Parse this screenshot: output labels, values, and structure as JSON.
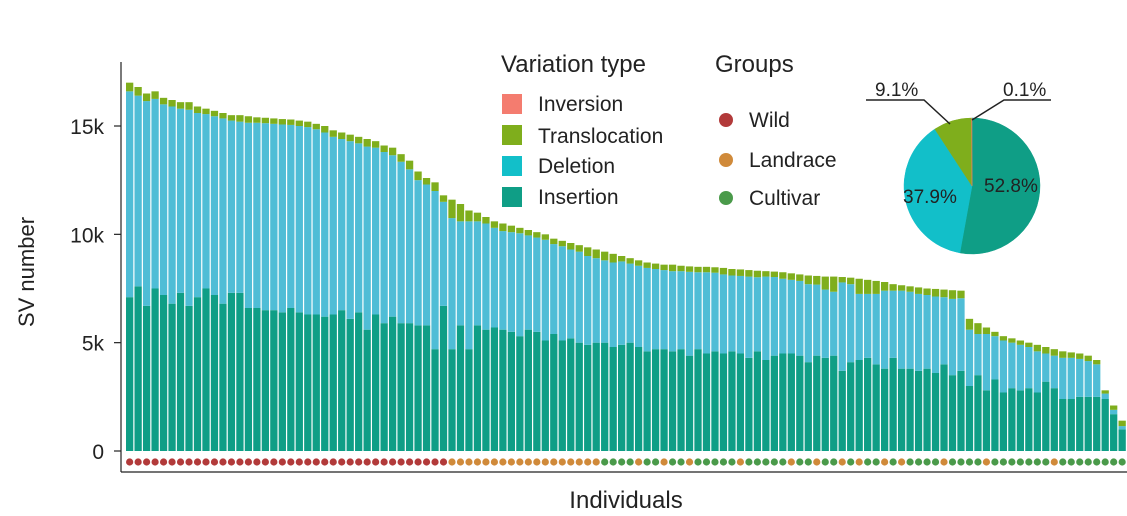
{
  "chart_data": [
    {
      "type": "bar",
      "stacked": true,
      "xlabel": "Individuals",
      "ylabel": "SV number",
      "ylim": [
        0,
        18000
      ],
      "yticks": [
        0,
        5000,
        10000,
        15000
      ],
      "yticklabels": [
        "0",
        "5k",
        "10k",
        "15k"
      ],
      "grid": false,
      "legend_variation": {
        "title": "Variation type",
        "entries": [
          "Inversion",
          "Translocation",
          "Deletion",
          "Insertion"
        ]
      },
      "legend_groups": {
        "title": "Groups",
        "entries": [
          "Wild",
          "Landrace",
          "Cultivar"
        ]
      },
      "colors": {
        "Inversion": "#f47c6f",
        "Translocation": "#7fae1c",
        "Deletion": "#4fbdd6",
        "Insertion": "#0f9e86",
        "Wild": "#b23a3a",
        "Landrace": "#d08a3a",
        "Cultivar": "#4a9a4a"
      },
      "totals": [
        17000,
        16800,
        16500,
        16600,
        16300,
        16200,
        16100,
        16100,
        15900,
        15800,
        15700,
        15600,
        15500,
        15500,
        15450,
        15400,
        15380,
        15350,
        15320,
        15300,
        15250,
        15200,
        15100,
        15000,
        14800,
        14700,
        14600,
        14500,
        14400,
        14300,
        14100,
        14000,
        13700,
        13400,
        12900,
        12600,
        12400,
        11800,
        11600,
        11400,
        11100,
        11000,
        10800,
        10600,
        10500,
        10400,
        10300,
        10200,
        10100,
        10000,
        9800,
        9700,
        9600,
        9500,
        9400,
        9300,
        9200,
        9100,
        9000,
        8900,
        8800,
        8700,
        8650,
        8600,
        8600,
        8550,
        8520,
        8500,
        8500,
        8480,
        8450,
        8400,
        8380,
        8350,
        8320,
        8300,
        8280,
        8250,
        8200,
        8150,
        8100,
        8080,
        8050,
        8050,
        8030,
        8000,
        7950,
        7900,
        7850,
        7800,
        7700,
        7650,
        7600,
        7550,
        7500,
        7480,
        7450,
        7420,
        7400,
        6100,
        5900,
        5700,
        5500,
        5300,
        5200,
        5100,
        5000,
        4900,
        4800,
        4700,
        4600,
        4550,
        4500,
        4400,
        4200,
        2800,
        2100,
        1400
      ],
      "translocation": [
        400,
        400,
        350,
        350,
        300,
        300,
        300,
        350,
        300,
        250,
        250,
        250,
        250,
        300,
        300,
        250,
        250,
        250,
        250,
        250,
        250,
        250,
        250,
        300,
        300,
        300,
        300,
        300,
        350,
        300,
        300,
        350,
        350,
        400,
        400,
        300,
        400,
        300,
        850,
        800,
        500,
        400,
        300,
        300,
        350,
        300,
        250,
        250,
        250,
        250,
        250,
        250,
        300,
        300,
        400,
        400,
        400,
        400,
        250,
        250,
        250,
        250,
        250,
        250,
        300,
        250,
        250,
        250,
        250,
        250,
        300,
        300,
        300,
        300,
        300,
        250,
        250,
        300,
        300,
        300,
        400,
        400,
        600,
        700,
        250,
        300,
        700,
        650,
        600,
        400,
        300,
        250,
        250,
        300,
        300,
        350,
        350,
        400,
        350,
        500,
        500,
        300,
        200,
        200,
        200,
        200,
        200,
        300,
        300,
        300,
        300,
        250,
        250,
        250,
        200,
        150,
        200,
        250
      ],
      "insertion": [
        7100,
        7600,
        6700,
        7500,
        7200,
        6800,
        7300,
        6700,
        7100,
        7500,
        7200,
        6800,
        7300,
        7300,
        6600,
        6600,
        6500,
        6500,
        6400,
        6600,
        6400,
        6300,
        6300,
        6200,
        6300,
        6500,
        6100,
        6400,
        5600,
        6300,
        5900,
        6200,
        5900,
        5900,
        5800,
        5800,
        4700,
        6700,
        4700,
        5800,
        4700,
        5800,
        5600,
        5700,
        5600,
        5500,
        5300,
        5600,
        5500,
        5100,
        5400,
        5100,
        5200,
        5000,
        4900,
        5000,
        5000,
        4800,
        4900,
        5000,
        4800,
        4600,
        4700,
        4700,
        4600,
        4700,
        4400,
        4700,
        4500,
        4600,
        4500,
        4600,
        4500,
        4300,
        4600,
        4200,
        4400,
        4500,
        4500,
        4400,
        4100,
        4400,
        4300,
        4400,
        3700,
        4100,
        4200,
        4300,
        4000,
        3800,
        4300,
        3800,
        3800,
        3700,
        3800,
        3600,
        4000,
        3500,
        3700,
        3000,
        3500,
        2800,
        3300,
        2700,
        2900,
        2800,
        2900,
        2700,
        3200,
        2900,
        2400,
        2400,
        2500,
        2500,
        2500,
        2400,
        1700,
        1000
      ],
      "groups_order": [
        "Wild",
        "Wild",
        "Wild",
        "Wild",
        "Wild",
        "Wild",
        "Wild",
        "Wild",
        "Wild",
        "Wild",
        "Wild",
        "Wild",
        "Wild",
        "Wild",
        "Wild",
        "Wild",
        "Wild",
        "Wild",
        "Wild",
        "Wild",
        "Wild",
        "Wild",
        "Wild",
        "Wild",
        "Wild",
        "Wild",
        "Wild",
        "Wild",
        "Wild",
        "Wild",
        "Wild",
        "Wild",
        "Wild",
        "Wild",
        "Wild",
        "Wild",
        "Wild",
        "Wild",
        "Landrace",
        "Landrace",
        "Landrace",
        "Landrace",
        "Landrace",
        "Landrace",
        "Landrace",
        "Landrace",
        "Landrace",
        "Landrace",
        "Landrace",
        "Landrace",
        "Landrace",
        "Landrace",
        "Landrace",
        "Landrace",
        "Landrace",
        "Landrace",
        "Cultivar",
        "Cultivar",
        "Cultivar",
        "Cultivar",
        "Landrace",
        "Cultivar",
        "Cultivar",
        "Landrace",
        "Cultivar",
        "Cultivar",
        "Landrace",
        "Cultivar",
        "Cultivar",
        "Cultivar",
        "Cultivar",
        "Cultivar",
        "Landrace",
        "Cultivar",
        "Cultivar",
        "Cultivar",
        "Cultivar",
        "Cultivar",
        "Landrace",
        "Cultivar",
        "Cultivar",
        "Landrace",
        "Cultivar",
        "Cultivar",
        "Landrace",
        "Cultivar",
        "Landrace",
        "Cultivar",
        "Cultivar",
        "Landrace",
        "Cultivar",
        "Landrace",
        "Cultivar",
        "Cultivar",
        "Cultivar",
        "Cultivar",
        "Landrace",
        "Cultivar",
        "Cultivar",
        "Cultivar",
        "Cultivar",
        "Landrace",
        "Cultivar",
        "Cultivar",
        "Cultivar",
        "Cultivar",
        "Cultivar",
        "Cultivar",
        "Cultivar",
        "Landrace",
        "Cultivar",
        "Cultivar",
        "Cultivar",
        "Cultivar",
        "Cultivar",
        "Cultivar",
        "Cultivar",
        "Cultivar"
      ]
    },
    {
      "type": "pie",
      "slices": [
        {
          "name": "Insertion",
          "value": 52.8,
          "label": "52.8%"
        },
        {
          "name": "Deletion",
          "value": 37.9,
          "label": "37.9%"
        },
        {
          "name": "Translocation",
          "value": 9.1,
          "label": "9.1%"
        },
        {
          "name": "Inversion",
          "value": 0.1,
          "label": "0.1%"
        }
      ]
    }
  ]
}
